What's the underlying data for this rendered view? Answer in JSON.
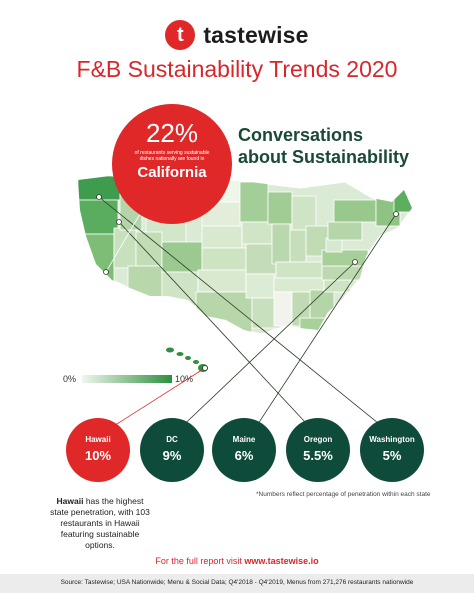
{
  "brand": {
    "name": "tastewise",
    "mark": "t"
  },
  "title": "F&B Sustainability Trends 2020",
  "subhead": [
    "Conversations",
    "about Sustainability"
  ],
  "highlight": {
    "percent": "22%",
    "description": "of restaurants serving sustainable dishes nationally are found in",
    "state": "California"
  },
  "legend": {
    "min": "0%",
    "max": "10%"
  },
  "states": [
    {
      "name": "Hawaii",
      "value": "10%",
      "color": "#e02828"
    },
    {
      "name": "DC",
      "value": "9%",
      "color": "#0f4b3a"
    },
    {
      "name": "Maine",
      "value": "6%",
      "color": "#0f4b3a"
    },
    {
      "name": "Oregon",
      "value": "5.5%",
      "color": "#0f4b3a"
    },
    {
      "name": "Washington",
      "value": "5%",
      "color": "#0f4b3a"
    }
  ],
  "note": "*Numbers reflect percentage of penetration within each state",
  "hawaii_note": {
    "lead": "Hawaii",
    "rest": " has the highest state penetration, with 103 restaurants in Hawaii featuring sustainable options."
  },
  "cta": {
    "prefix": "For the full report visit ",
    "link": "www.tastewise.io"
  },
  "source": "Source:  Tastewise; USA Nationwide; Menu & Social Data; Q4'2018 - Q4'2019, Menus from 271,276 restaurants nationwide"
}
